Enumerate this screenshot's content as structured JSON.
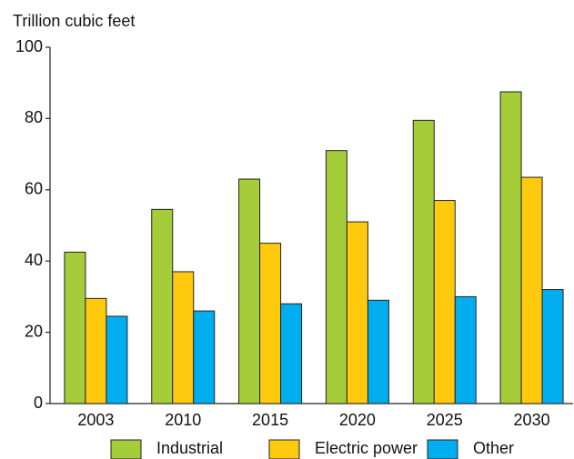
{
  "chart_data": {
    "type": "bar",
    "y_label": "Trillion cubic feet",
    "categories": [
      "2003",
      "2010",
      "2015",
      "2020",
      "2025",
      "2030"
    ],
    "series": [
      {
        "name": "Industrial",
        "color": "#a5cd39",
        "values": [
          42.5,
          54.5,
          63,
          71,
          79.5,
          87.5
        ]
      },
      {
        "name": "Electric power",
        "color": "#ffc90e",
        "values": [
          29.5,
          37,
          45,
          51,
          57,
          63.5
        ]
      },
      {
        "name": "Other",
        "color": "#00aeef",
        "values": [
          24.5,
          26,
          28,
          29,
          30,
          32
        ]
      }
    ],
    "ylim": [
      0,
      100
    ],
    "yticks": [
      0,
      20,
      40,
      60,
      80,
      100
    ]
  }
}
